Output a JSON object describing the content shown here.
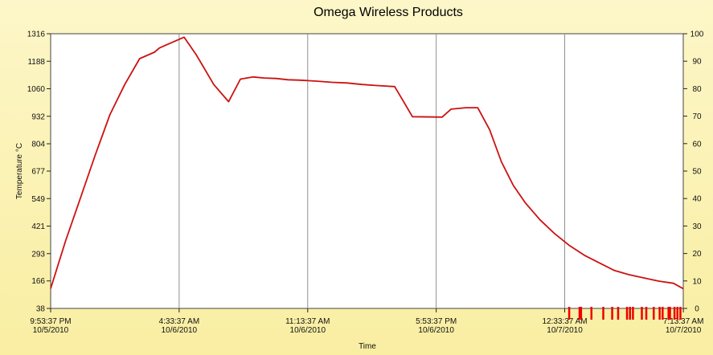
{
  "chart_data": {
    "type": "line",
    "title": "Omega Wireless Products",
    "xlabel": "Time",
    "ylabel": "Temperature °C",
    "ylim": [
      38,
      1316
    ],
    "y2lim": [
      0,
      100
    ],
    "xlim": [
      0,
      21.33
    ],
    "grid": true,
    "legend": "none",
    "y_ticks": [
      38,
      166,
      293,
      421,
      549,
      677,
      804,
      932,
      1060,
      1188,
      1316
    ],
    "y2_ticks": [
      0,
      10,
      20,
      30,
      40,
      50,
      60,
      70,
      80,
      90,
      100
    ],
    "x_ticks": [
      {
        "x": 0,
        "time": "9:53:37 PM",
        "date": "10/5/2010"
      },
      {
        "x": 4.333,
        "time": "4:33:37 AM",
        "date": "10/6/2010"
      },
      {
        "x": 8.667,
        "time": "11:13:37 AM",
        "date": "10/6/2010"
      },
      {
        "x": 13.0,
        "time": "5:53:37 PM",
        "date": "10/6/2010"
      },
      {
        "x": 17.333,
        "time": "12:33:37 AM",
        "date": "10/7/2010"
      },
      {
        "x": 21.333,
        "time": "7:13:37 AM",
        "date": "10/7/2010"
      }
    ],
    "colors": {
      "series": "#cc1111",
      "grid": "#8f8f8f",
      "plot_bg": "#ffffff",
      "marks": "#ee0000"
    },
    "series": [
      {
        "x": [
          0,
          0.5,
          1.0,
          1.5,
          2.0,
          2.5,
          3.0,
          3.5,
          3.67,
          4.0,
          4.5,
          4.9,
          5.2,
          5.5,
          6.0,
          6.4,
          6.83,
          7.2,
          7.6,
          8.0,
          8.4,
          9.0,
          9.5,
          10.0,
          10.5,
          11.0,
          11.6,
          11.9,
          12.2,
          13.2,
          13.5,
          14.0,
          14.4,
          14.8,
          15.2,
          15.6,
          16.0,
          16.5,
          17.0,
          17.5,
          18.0,
          18.5,
          19.0,
          19.5,
          20.0,
          20.5,
          21.0,
          21.33
        ],
        "y": [
          130,
          350,
          550,
          750,
          940,
          1080,
          1200,
          1230,
          1250,
          1270,
          1300,
          1220,
          1150,
          1080,
          1000,
          1105,
          1115,
          1110,
          1108,
          1102,
          1100,
          1095,
          1090,
          1087,
          1080,
          1075,
          1070,
          1000,
          930,
          928,
          965,
          972,
          972,
          870,
          720,
          610,
          530,
          450,
          385,
          330,
          285,
          250,
          215,
          195,
          180,
          165,
          155,
          130
        ]
      }
    ]
  }
}
